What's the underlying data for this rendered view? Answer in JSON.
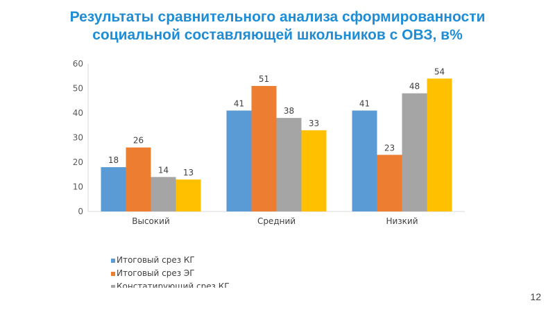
{
  "slide": {
    "title_line1": "Результаты сравнительного анализа сформированности",
    "title_line2": "социальной составляющей школьников с ОВЗ, в%",
    "page_number": "12"
  },
  "chart_data": {
    "type": "bar",
    "categories": [
      "Высокий",
      "Средний",
      "Низкий"
    ],
    "series": [
      {
        "name": "Итоговый срез КГ",
        "color": "#5b9bd5",
        "values": [
          18,
          41,
          41
        ]
      },
      {
        "name": "Итоговый срез ЭГ",
        "color": "#ed7d31",
        "values": [
          26,
          51,
          23
        ]
      },
      {
        "name": "Констатирующий срез КГ",
        "color": "#a5a5a5",
        "values": [
          14,
          38,
          48
        ]
      },
      {
        "color": "#ffc000",
        "values": [
          13,
          33,
          54
        ]
      }
    ],
    "yticks": [
      "0",
      "10",
      "20",
      "30",
      "40",
      "50",
      "60"
    ],
    "ylim": [
      0,
      60
    ],
    "grid": false,
    "data_labels": true,
    "legend_position": "bottom"
  }
}
